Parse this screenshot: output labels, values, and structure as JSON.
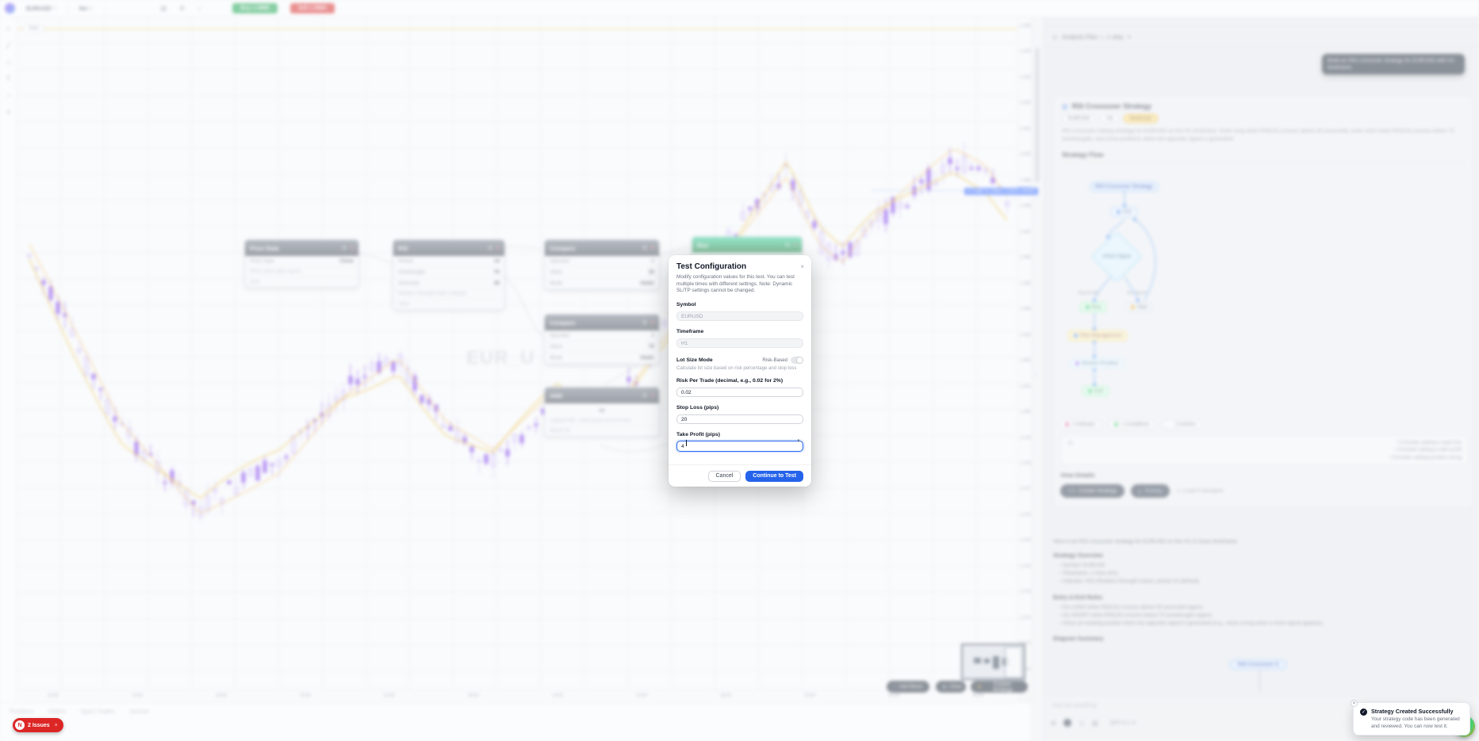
{
  "colors": {
    "accent_blue": "#2563eb",
    "buy_green": "#16a34a",
    "sell_red": "#dc2626",
    "indicator_blue": "#3b82f6",
    "condition_pink": "#ec4899",
    "action_green": "#22c55e",
    "candle_purple": "#7c3aed",
    "ma_gold": "#eab308",
    "current_price_blue": "#2962ff"
  },
  "icons": {
    "close": "×",
    "gear": "⚙",
    "chevron_down": "▾",
    "warning": "⚠",
    "check": "✓",
    "plus": "+",
    "clear": "⊗",
    "sparkles": "✦",
    "external": "↗",
    "code": "</>",
    "play": "▸",
    "spin_up": "▴",
    "spin_down": "▾",
    "and_symbol": "∞",
    "chart": "▥"
  },
  "topbar": {
    "symbol": "EURUSD",
    "timeframe": "5m",
    "tool_icons": [
      "▤",
      "⚙",
      "○"
    ],
    "buy_label": "Buy 1.0886",
    "sell_label": "Sell 1.0884"
  },
  "left_toolbar": {
    "tools": [
      "+",
      "╱",
      "□",
      "T",
      "○",
      "≡"
    ]
  },
  "chart": {
    "start_chip": "Start",
    "watermark": "EUR_U",
    "price_labels": [
      "1.0950",
      "1.0940",
      "1.0930",
      "1.0920",
      "1.0910",
      "1.0900",
      "1.0890",
      "1.0880",
      "1.0870",
      "1.0860",
      "1.0850",
      "1.0840",
      "1.0830",
      "1.0820",
      "1.0810",
      "1.0800",
      "1.0790",
      "1.0780",
      "1.0770",
      "1.0760",
      "1.0750",
      "1.0740",
      "1.0730",
      "1.0720",
      "1.0710",
      "1.0700"
    ],
    "current_price": "1.0886",
    "ohlc_pill": "O 1.0882  H 1.0890  L 1.0879  C 1.0886",
    "time_labels": [
      "10:00",
      "14:00",
      "18:00",
      "22:00",
      "02:00",
      "06:00",
      "10:00",
      "14:00",
      "18:00",
      "22:00",
      "02:00",
      "06:00"
    ]
  },
  "blocks": {
    "price_data": {
      "title": "Price Data",
      "rows": [
        {
          "k": "Price Type",
          "v": "Close"
        }
      ],
      "note": "OHLC price data source",
      "port": "price"
    },
    "rsi": {
      "title": "RSI",
      "rows": [
        {
          "k": "Period",
          "v": "14"
        },
        {
          "k": "Overbought",
          "v": "70"
        },
        {
          "k": "Oversold",
          "v": "30"
        }
      ],
      "note": "Relative Strength Index indicator",
      "port": "value"
    },
    "compare_a": {
      "title": "Compare",
      "rows": [
        {
          "k": "Operator",
          "v": ">"
        },
        {
          "k": "Value",
          "v": "30"
        },
        {
          "k": "Mode",
          "v": "Static"
        }
      ]
    },
    "compare_b": {
      "title": "Compare",
      "rows": [
        {
          "k": "Operator",
          "v": "<"
        },
        {
          "k": "Value",
          "v": "70"
        },
        {
          "k": "Mode",
          "v": "Static"
        }
      ]
    },
    "buy": {
      "title": "Buy"
    },
    "and_block": {
      "title": "AND",
      "note": "Logical AND - both inputs must be true",
      "port": "Result: M"
    }
  },
  "canvas_toolbar": {
    "add_block": "Add Block",
    "clear": "Clear",
    "explain": "Explain Strategy"
  },
  "modal": {
    "title": "Test Configuration",
    "description": "Modify configuration values for this test. You can test multiple times with different settings. Note: Dynamic SL/TP settings cannot be changed.",
    "fields": {
      "symbol_label": "Symbol",
      "symbol_value": "EURUSD",
      "timeframe_label": "Timeframe",
      "timeframe_value": "H1",
      "lot_mode_label": "Lot Size Mode",
      "lot_mode_toggle": "Risk-Based",
      "lot_mode_help": "Calculate lot size based on risk percentage and stop loss",
      "risk_label": "Risk Per Trade (decimal, e.g., 0.02 for 2%)",
      "risk_value": "0.02",
      "sl_label": "Stop Loss (pips)",
      "sl_value": "20",
      "tp_label": "Take Profit (pips)",
      "tp_value": "4"
    },
    "cancel": "Cancel",
    "submit": "Continue to Test"
  },
  "sidebar": {
    "title": "Strategy Builder",
    "plan_label": "Analysis Plan — 1 step",
    "tooltip": "Build an RSI crossover strategy for EURUSD with H1 timeframe",
    "card": {
      "title": "RSI Crossover Strategy",
      "badges": [
        "EURUSD",
        "H1",
        "Moderate"
      ],
      "description": "RSI crossover trading strategy for EURUSD on the H1 timeframe. Enter long when RSI(14) crosses above 30 (oversold), enter short when RSI(14) crosses below 70 (overbought), and close positions when the opposite signal is generated.",
      "flow_title": "Strategy Flow",
      "flow": {
        "root": "RSI Crossover Strategy",
        "indicator": "RSI",
        "condition": "Check Signal",
        "yes": "Signal Met",
        "no": "No Signal",
        "buy": "Buy",
        "wait": "Wait",
        "risk": "Risk Management",
        "monitor": "Monitor Position",
        "exit": "Exit"
      },
      "legend": [
        "1 Indicator",
        "1 Conditions",
        "3 Actions"
      ],
      "suggestions": [
        "Consider adding a stop loss",
        "Consider adding a take profit",
        "Consider adding position sizing"
      ],
      "view_details": "View Details",
      "buttons": [
        "Create Strategy",
        "Testing"
      ],
      "load_link": "Load in Designer"
    },
    "summary": {
      "intro": "Here is an RSI crossover strategy for EURUSD on the H1 (1-hour) timeframe:",
      "overview_title": "Strategy Overview",
      "overview_items": [
        "Symbol: EURUSD",
        "Timeframe: 1 Hour (H1)",
        "Indicator: RSI (Relative Strength Index), period 14 (default)"
      ],
      "rules_title": "Entry & Exit Rules",
      "rules_items": [
        "Go LONG when RSI(14) crosses above 30 (oversold region)",
        "Go SHORT when RSI(14) crosses below 70 (overbought region)",
        "Close an existing position when the opposite signal is generated (e.g., close a long when a short signal appears)"
      ],
      "diagram_title": "Diagram Summary",
      "diagram_node": "RSI Crossover S"
    },
    "chat": {
      "placeholder": "Ask me anything",
      "model": "GPT-4.1"
    }
  },
  "toast": {
    "title": "Strategy Created Successfully",
    "message": "Your strategy code has been generated and reviewed. You can now test it."
  },
  "bottom": {
    "tabs": [
      "Positions",
      "Orders",
      "Open Trades",
      "Journal"
    ],
    "issues_logo": "N",
    "issues_label": "2 Issues"
  }
}
